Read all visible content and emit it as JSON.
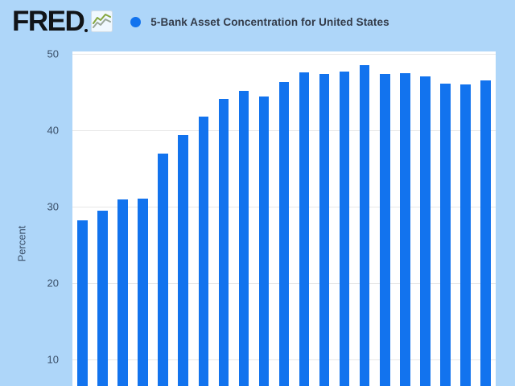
{
  "header": {
    "logo_text": "FRED",
    "logo_icon": "line-chart-icon",
    "series_title": "5-Bank Asset Concentration for United States"
  },
  "y_axis": {
    "title": "Percent",
    "ticks": [
      "50",
      "40",
      "30",
      "20",
      "10"
    ]
  },
  "colors": {
    "page_background": "#aed6f9",
    "plot_background": "#ffffff",
    "bar_color": "#1273ee",
    "legend_marker_color": "#1273ee",
    "gridline_color": "#e7e7e7",
    "text_color": "#333b49",
    "axis_text_color": "#3a4f68",
    "logo_color": "#111418"
  },
  "chart_data": {
    "type": "bar",
    "title": "5-Bank Asset Concentration for United States",
    "xlabel": "",
    "ylabel": "Percent",
    "yticks": [
      10,
      20,
      30,
      40,
      50
    ],
    "ylim_visible": [
      6.5,
      50.3
    ],
    "grid": true,
    "legend_position": "top-left",
    "x_axis_labels_visible": false,
    "series_name": "5-Bank Asset Concentration for United States",
    "values": [
      28.2,
      29.5,
      30.9,
      31.1,
      37.0,
      39.4,
      41.8,
      44.1,
      45.2,
      44.4,
      46.3,
      47.6,
      47.4,
      47.7,
      48.5,
      47.4,
      47.5,
      47.1,
      46.1,
      46.0,
      46.5
    ]
  }
}
